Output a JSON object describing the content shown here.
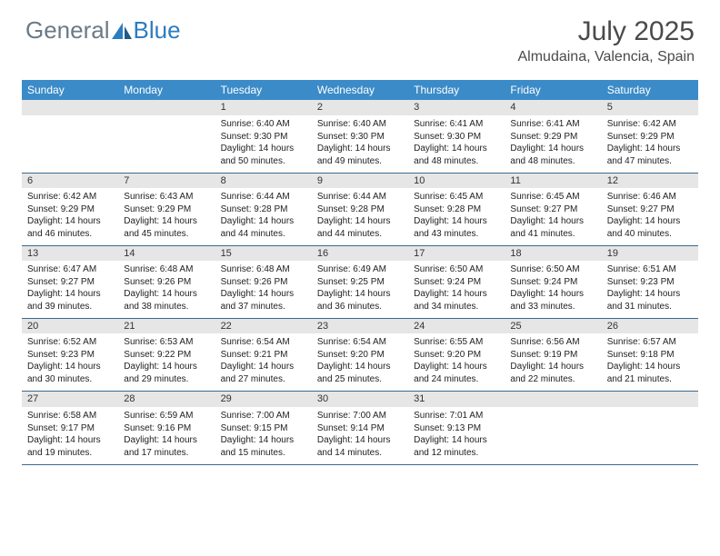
{
  "brand": {
    "part1": "General",
    "part2": "Blue"
  },
  "title": "July 2025",
  "location": "Almudaina, Valencia, Spain",
  "accent_color": "#3b8bc8",
  "text_color": "#4a4a4a",
  "day_bg": "#e6e6e6",
  "border_color": "#3b6a8f",
  "day_headers": [
    "Sunday",
    "Monday",
    "Tuesday",
    "Wednesday",
    "Thursday",
    "Friday",
    "Saturday"
  ],
  "weeks": [
    [
      null,
      null,
      {
        "n": "1",
        "sr": "6:40 AM",
        "ss": "9:30 PM",
        "dl": "14 hours and 50 minutes."
      },
      {
        "n": "2",
        "sr": "6:40 AM",
        "ss": "9:30 PM",
        "dl": "14 hours and 49 minutes."
      },
      {
        "n": "3",
        "sr": "6:41 AM",
        "ss": "9:30 PM",
        "dl": "14 hours and 48 minutes."
      },
      {
        "n": "4",
        "sr": "6:41 AM",
        "ss": "9:29 PM",
        "dl": "14 hours and 48 minutes."
      },
      {
        "n": "5",
        "sr": "6:42 AM",
        "ss": "9:29 PM",
        "dl": "14 hours and 47 minutes."
      }
    ],
    [
      {
        "n": "6",
        "sr": "6:42 AM",
        "ss": "9:29 PM",
        "dl": "14 hours and 46 minutes."
      },
      {
        "n": "7",
        "sr": "6:43 AM",
        "ss": "9:29 PM",
        "dl": "14 hours and 45 minutes."
      },
      {
        "n": "8",
        "sr": "6:44 AM",
        "ss": "9:28 PM",
        "dl": "14 hours and 44 minutes."
      },
      {
        "n": "9",
        "sr": "6:44 AM",
        "ss": "9:28 PM",
        "dl": "14 hours and 44 minutes."
      },
      {
        "n": "10",
        "sr": "6:45 AM",
        "ss": "9:28 PM",
        "dl": "14 hours and 43 minutes."
      },
      {
        "n": "11",
        "sr": "6:45 AM",
        "ss": "9:27 PM",
        "dl": "14 hours and 41 minutes."
      },
      {
        "n": "12",
        "sr": "6:46 AM",
        "ss": "9:27 PM",
        "dl": "14 hours and 40 minutes."
      }
    ],
    [
      {
        "n": "13",
        "sr": "6:47 AM",
        "ss": "9:27 PM",
        "dl": "14 hours and 39 minutes."
      },
      {
        "n": "14",
        "sr": "6:48 AM",
        "ss": "9:26 PM",
        "dl": "14 hours and 38 minutes."
      },
      {
        "n": "15",
        "sr": "6:48 AM",
        "ss": "9:26 PM",
        "dl": "14 hours and 37 minutes."
      },
      {
        "n": "16",
        "sr": "6:49 AM",
        "ss": "9:25 PM",
        "dl": "14 hours and 36 minutes."
      },
      {
        "n": "17",
        "sr": "6:50 AM",
        "ss": "9:24 PM",
        "dl": "14 hours and 34 minutes."
      },
      {
        "n": "18",
        "sr": "6:50 AM",
        "ss": "9:24 PM",
        "dl": "14 hours and 33 minutes."
      },
      {
        "n": "19",
        "sr": "6:51 AM",
        "ss": "9:23 PM",
        "dl": "14 hours and 31 minutes."
      }
    ],
    [
      {
        "n": "20",
        "sr": "6:52 AM",
        "ss": "9:23 PM",
        "dl": "14 hours and 30 minutes."
      },
      {
        "n": "21",
        "sr": "6:53 AM",
        "ss": "9:22 PM",
        "dl": "14 hours and 29 minutes."
      },
      {
        "n": "22",
        "sr": "6:54 AM",
        "ss": "9:21 PM",
        "dl": "14 hours and 27 minutes."
      },
      {
        "n": "23",
        "sr": "6:54 AM",
        "ss": "9:20 PM",
        "dl": "14 hours and 25 minutes."
      },
      {
        "n": "24",
        "sr": "6:55 AM",
        "ss": "9:20 PM",
        "dl": "14 hours and 24 minutes."
      },
      {
        "n": "25",
        "sr": "6:56 AM",
        "ss": "9:19 PM",
        "dl": "14 hours and 22 minutes."
      },
      {
        "n": "26",
        "sr": "6:57 AM",
        "ss": "9:18 PM",
        "dl": "14 hours and 21 minutes."
      }
    ],
    [
      {
        "n": "27",
        "sr": "6:58 AM",
        "ss": "9:17 PM",
        "dl": "14 hours and 19 minutes."
      },
      {
        "n": "28",
        "sr": "6:59 AM",
        "ss": "9:16 PM",
        "dl": "14 hours and 17 minutes."
      },
      {
        "n": "29",
        "sr": "7:00 AM",
        "ss": "9:15 PM",
        "dl": "14 hours and 15 minutes."
      },
      {
        "n": "30",
        "sr": "7:00 AM",
        "ss": "9:14 PM",
        "dl": "14 hours and 14 minutes."
      },
      {
        "n": "31",
        "sr": "7:01 AM",
        "ss": "9:13 PM",
        "dl": "14 hours and 12 minutes."
      },
      null,
      null
    ]
  ],
  "labels": {
    "sunrise": "Sunrise:",
    "sunset": "Sunset:",
    "daylight": "Daylight:"
  }
}
